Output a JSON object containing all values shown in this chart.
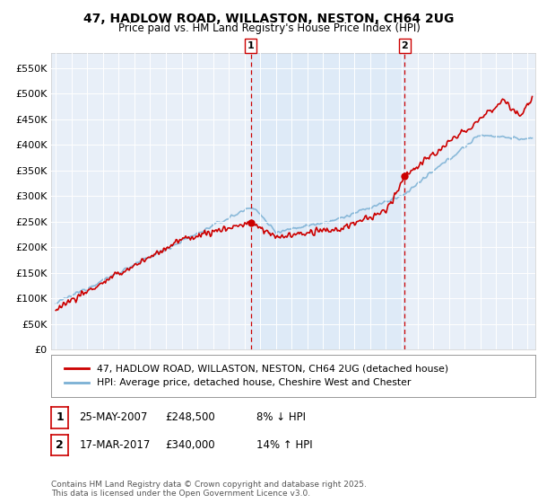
{
  "title_line1": "47, HADLOW ROAD, WILLASTON, NESTON, CH64 2UG",
  "title_line2": "Price paid vs. HM Land Registry's House Price Index (HPI)",
  "legend_label_red": "47, HADLOW ROAD, WILLASTON, NESTON, CH64 2UG (detached house)",
  "legend_label_blue": "HPI: Average price, detached house, Cheshire West and Chester",
  "annotation1_date": "25-MAY-2007",
  "annotation1_price": "£248,500",
  "annotation1_hpi": "8% ↓ HPI",
  "annotation2_date": "17-MAR-2017",
  "annotation2_price": "£340,000",
  "annotation2_hpi": "14% ↑ HPI",
  "footnote": "Contains HM Land Registry data © Crown copyright and database right 2025.\nThis data is licensed under the Open Government Licence v3.0.",
  "ylim": [
    0,
    580000
  ],
  "yticks": [
    0,
    50000,
    100000,
    150000,
    200000,
    250000,
    300000,
    350000,
    400000,
    450000,
    500000,
    550000
  ],
  "ytick_labels": [
    "£0",
    "£50K",
    "£100K",
    "£150K",
    "£200K",
    "£250K",
    "£300K",
    "£350K",
    "£400K",
    "£450K",
    "£500K",
    "£550K"
  ],
  "plot_bg_color": "#e8eff8",
  "highlight_color": "#d0e4f7",
  "grid_color": "#ffffff",
  "marker1_x": 2007.4,
  "marker1_y": 248500,
  "marker2_x": 2017.2,
  "marker2_y": 340000,
  "red_color": "#cc0000",
  "blue_color": "#7ab0d4",
  "xmin": 1994.7,
  "xmax": 2025.5
}
